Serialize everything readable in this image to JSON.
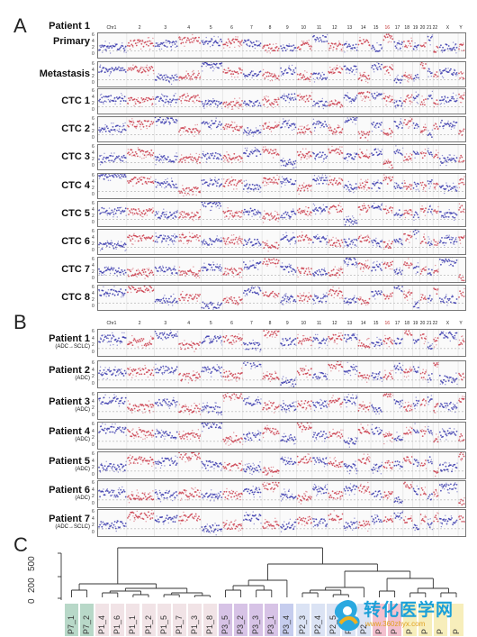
{
  "panelA": {
    "letter": "A",
    "header_label": "Patient 1",
    "rows": [
      "Primary",
      "Metastasis",
      "CTC 1",
      "CTC 2",
      "CTC 3",
      "CTC 4",
      "CTC 5",
      "CTC 6",
      "CTC 7",
      "CTC 8"
    ]
  },
  "panelB": {
    "letter": "B",
    "rows": [
      {
        "name": "Patient 1",
        "sub": "(ADC→SCLC)"
      },
      {
        "name": "Patient 2",
        "sub": "(ADC)"
      },
      {
        "name": "Patient 3",
        "sub": "(ADC)"
      },
      {
        "name": "Patient 4",
        "sub": "(ADC)"
      },
      {
        "name": "Patient 5",
        "sub": "(ADC)"
      },
      {
        "name": "Patient 6",
        "sub": "(ADC)"
      },
      {
        "name": "Patient 7",
        "sub": "(ADC→SCLC)"
      }
    ]
  },
  "chromosomes": [
    "Chr1",
    "2",
    "3",
    "4",
    "5",
    "6",
    "7",
    "8",
    "9",
    "10",
    "11",
    "12",
    "13",
    "14",
    "15",
    "16",
    "17",
    "18",
    "19",
    "20",
    "21",
    "22",
    "X",
    "Y"
  ],
  "yticks": [
    "6",
    "4",
    "2",
    "0"
  ],
  "panelC": {
    "letter": "C",
    "y_ticks": [
      "500",
      "200",
      "0"
    ],
    "leaves": [
      "P7_1",
      "P7_2",
      "P1_4",
      "P1_6",
      "P1_1",
      "P1_2",
      "P1_5",
      "P1_7",
      "P1_3",
      "P1_8",
      "P3_5",
      "P3_2",
      "P3_3",
      "P3_1",
      "P3_4",
      "P2_3",
      "P2_4",
      "P2_5",
      "P2_",
      "P2",
      "P",
      "P",
      "P",
      "P",
      "P",
      "P"
    ]
  },
  "watermark": {
    "text": "转化医学网",
    "url": "www.360zhyx.com"
  },
  "colors": {
    "copy_gain": "#2a2aa8",
    "copy_loss": "#c83040",
    "leaf_p7": "#b8d8c8",
    "leaf_p1": "#f1e3e6",
    "leaf_p3": "#d7c3e6",
    "leaf_p34": "#c6cdee",
    "leaf_p2": "#dbe3f4",
    "leaf_pink": "#f3c0ce",
    "leaf_yellow": "#f7eebb"
  }
}
